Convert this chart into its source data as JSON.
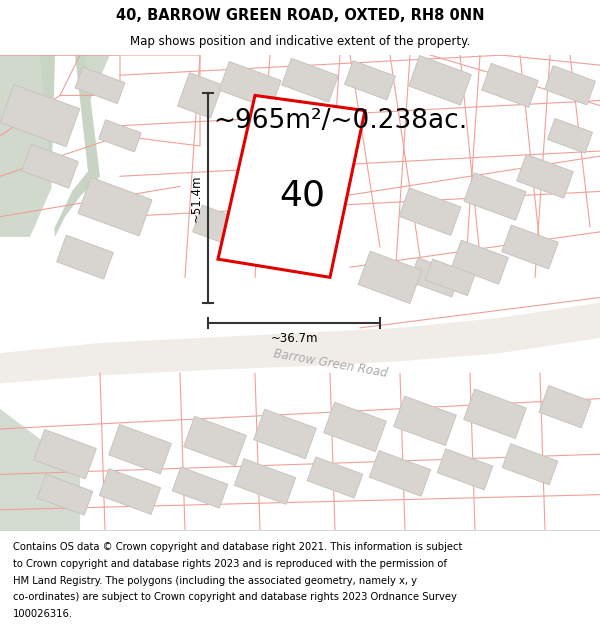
{
  "title_line1": "40, BARROW GREEN ROAD, OXTED, RH8 0NN",
  "title_line2": "Map shows position and indicative extent of the property.",
  "area_text": "~965m²/~0.238ac.",
  "property_number": "40",
  "dim_height": "~51.4m",
  "dim_width": "~36.7m",
  "road_label": "Barrow Green Road",
  "footer_lines": [
    "Contains OS data © Crown copyright and database right 2021. This information is subject",
    "to Crown copyright and database rights 2023 and is reproduced with the permission of",
    "HM Land Registry. The polygons (including the associated geometry, namely x, y",
    "co-ordinates) are subject to Crown copyright and database rights 2023 Ordnance Survey",
    "100026316."
  ],
  "map_bg": "#ffffff",
  "green_fill1": "#d4ddd0",
  "green_fill2": "#dde5d8",
  "road_outline_color": "#e8c8c0",
  "building_fill": "#d8d4d0",
  "building_edge": "#c8c4c0",
  "parcel_line_color": "#f0a098",
  "property_stroke": "#e00000",
  "dim_line_color": "#333333",
  "road_text_color": "#999999",
  "title_fontsize": 10.5,
  "subtitle_fontsize": 8.5,
  "area_fontsize": 19,
  "number_fontsize": 26,
  "dim_fontsize": 8.5,
  "footer_fontsize": 7.2,
  "road_label_fontsize": 8.5
}
